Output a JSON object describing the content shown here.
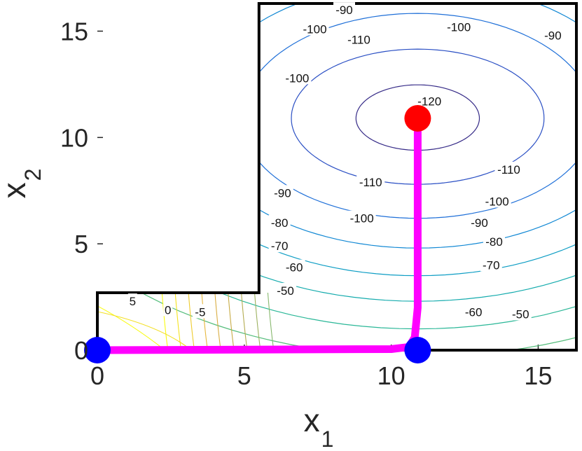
{
  "chart_data": {
    "type": "contour",
    "title": "",
    "xlabel": "x",
    "xlabel_sub": "1",
    "ylabel": "x",
    "ylabel_sub": "2",
    "xlim": [
      0,
      16.3
    ],
    "ylim": [
      0,
      16.3
    ],
    "xticks": [
      0,
      5,
      10,
      15
    ],
    "yticks": [
      0,
      5,
      10,
      15
    ],
    "grid": false,
    "domain_boundary": [
      [
        0,
        0
      ],
      [
        0,
        2.7
      ],
      [
        5.5,
        2.7
      ],
      [
        5.5,
        16.3
      ],
      [
        16.3,
        16.3
      ],
      [
        16.3,
        0
      ],
      [
        0,
        0
      ]
    ],
    "contour_levels": [
      -120,
      -110,
      -100,
      -90,
      -80,
      -70,
      -60,
      -50,
      -5,
      0,
      5
    ],
    "contour_labels": [
      {
        "text": "-120",
        "x": 11.3,
        "y": 11.7
      },
      {
        "text": "-110",
        "x": 8.9,
        "y": 14.6
      },
      {
        "text": "-110",
        "x": 9.3,
        "y": 7.9
      },
      {
        "text": "-110",
        "x": 14.0,
        "y": 8.5
      },
      {
        "text": "-100",
        "x": 7.4,
        "y": 15.1
      },
      {
        "text": "-100",
        "x": 12.3,
        "y": 15.2
      },
      {
        "text": "-100",
        "x": 9.0,
        "y": 6.2
      },
      {
        "text": "-100",
        "x": 13.6,
        "y": 7.0
      },
      {
        "text": "-100",
        "x": 6.8,
        "y": 12.8
      },
      {
        "text": "-90",
        "x": 15.5,
        "y": 14.8
      },
      {
        "text": "-90",
        "x": 8.4,
        "y": 16.0
      },
      {
        "text": "-90",
        "x": 6.3,
        "y": 7.4
      },
      {
        "text": "-90",
        "x": 13.0,
        "y": 6.0
      },
      {
        "text": "-80",
        "x": 6.2,
        "y": 6.0
      },
      {
        "text": "-80",
        "x": 13.5,
        "y": 5.1
      },
      {
        "text": "-70",
        "x": 6.2,
        "y": 4.9
      },
      {
        "text": "-70",
        "x": 13.4,
        "y": 4.0
      },
      {
        "text": "-60",
        "x": 6.7,
        "y": 3.9
      },
      {
        "text": "-60",
        "x": 12.8,
        "y": 1.8
      },
      {
        "text": "-50",
        "x": 6.4,
        "y": 2.8
      },
      {
        "text": "-50",
        "x": 14.4,
        "y": 1.7
      },
      {
        "text": "5",
        "x": 1.2,
        "y": 2.3
      },
      {
        "text": "0",
        "x": 2.4,
        "y": 1.9
      },
      {
        "text": "-5",
        "x": 3.5,
        "y": 1.8
      }
    ],
    "series": [
      {
        "name": "",
        "type": "line",
        "color": "#ff00ff",
        "x": [
          0,
          10.0,
          10.6,
          10.8,
          10.9,
          10.9
        ],
        "y": [
          0,
          0.05,
          0.15,
          0.6,
          2.0,
          10.9
        ]
      }
    ],
    "points": [
      {
        "x": 0,
        "y": 0,
        "color": "#0000ff"
      },
      {
        "x": 10.9,
        "y": 0,
        "color": "#0000ff"
      },
      {
        "x": 10.9,
        "y": 10.9,
        "color": "#ff0000"
      }
    ],
    "optimum": {
      "x": 10.9,
      "y": 10.9
    }
  }
}
